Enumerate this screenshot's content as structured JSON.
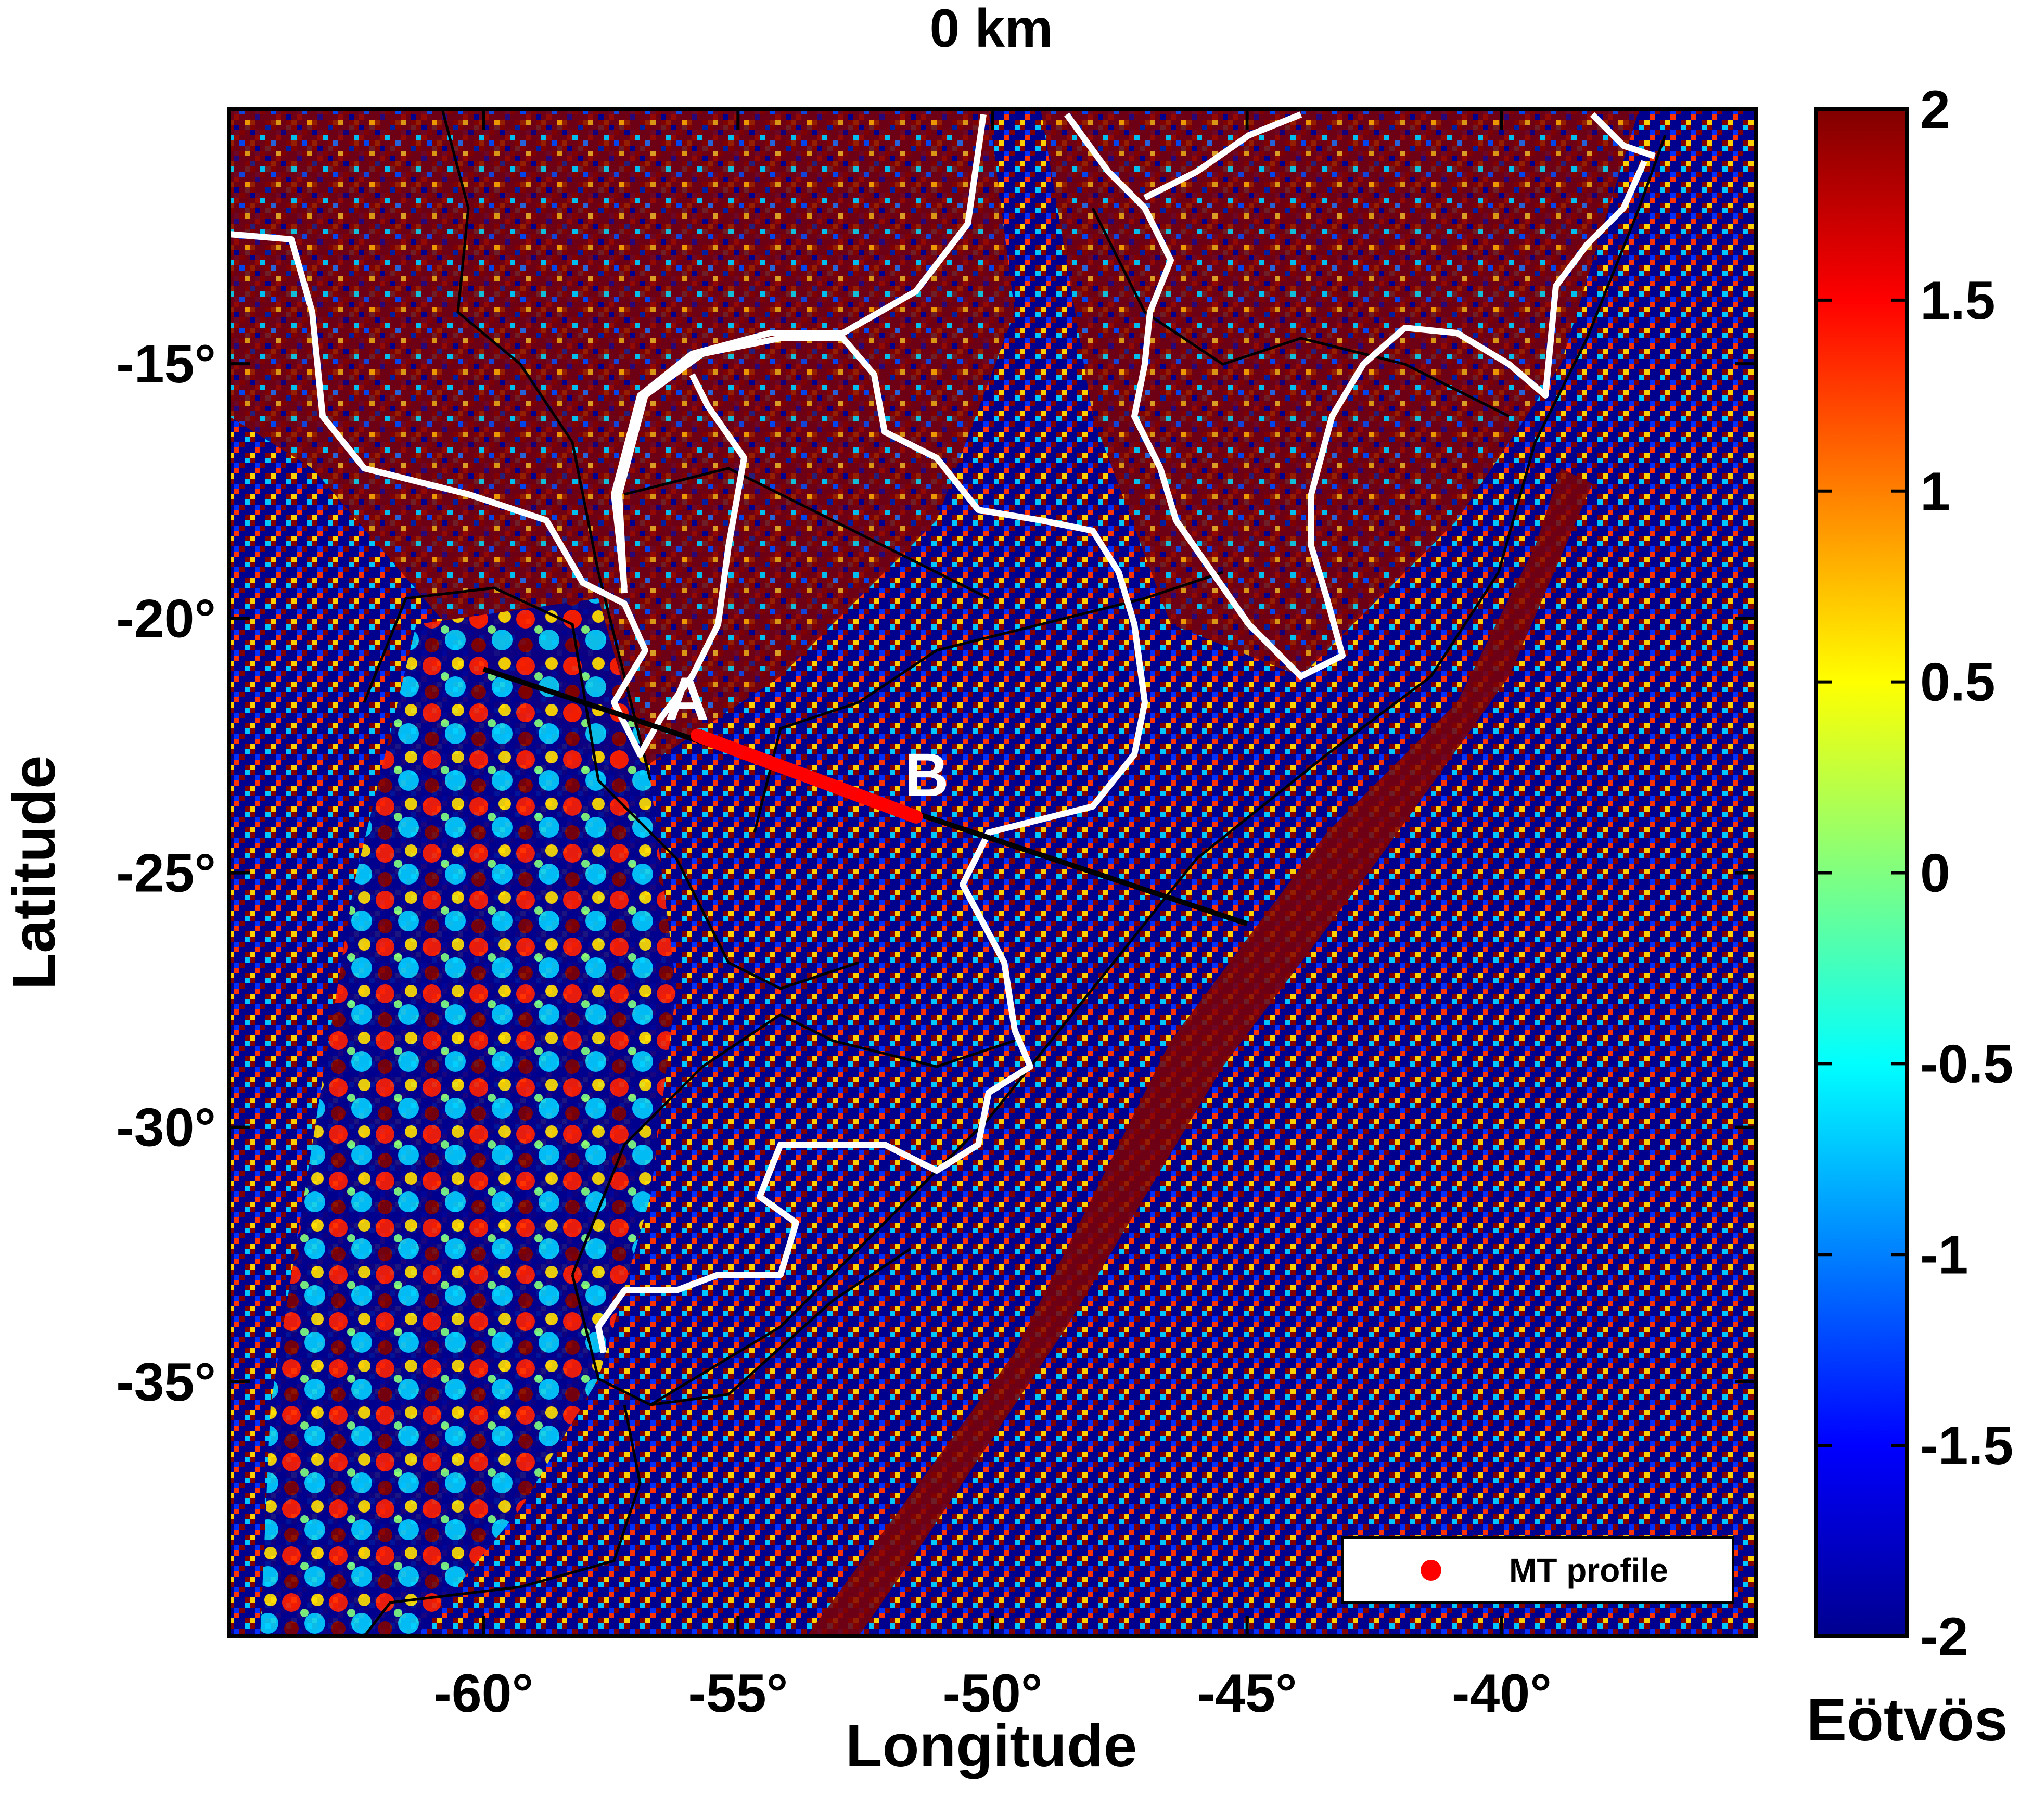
{
  "title": "0 km",
  "xaxis": {
    "label": "Longitude",
    "range": [
      -65,
      -35
    ],
    "ticks": [
      -60,
      -55,
      -50,
      -45,
      -40
    ],
    "tick_labels": [
      "-60°",
      "-55°",
      "-50°",
      "-45°",
      "-40°"
    ]
  },
  "yaxis": {
    "label": "Latitude",
    "range": [
      -40,
      -10
    ],
    "ticks": [
      -15,
      -20,
      -25,
      -30,
      -35
    ],
    "tick_labels": [
      "-15°",
      "-20°",
      "-25°",
      "-30°",
      "-35°"
    ]
  },
  "colorbar": {
    "label": "Eötvös",
    "range": [
      -2,
      2
    ],
    "ticks": [
      2,
      1.5,
      1,
      0.5,
      0,
      -0.5,
      -1,
      -1.5,
      -2
    ],
    "tick_labels": [
      "2",
      "1.5",
      "1",
      "0.5",
      "0",
      "-0.5",
      "-1",
      "-1.5",
      "-2"
    ],
    "colormap": "jet"
  },
  "profile": {
    "line_start": [
      -60,
      -21
    ],
    "line_end": [
      -45,
      -26
    ],
    "mt_start": [
      -55.8,
      -22.3
    ],
    "mt_end": [
      -51.5,
      -23.9
    ],
    "point_a_label": "A",
    "point_b_label": "B",
    "line_color": "#000000",
    "mt_color": "#ff0000"
  },
  "legend": {
    "label": "MT profile",
    "position": "bottom-right"
  },
  "colors": {
    "low": "#00008f",
    "high": "#800000",
    "boundary": "#ffffff"
  }
}
